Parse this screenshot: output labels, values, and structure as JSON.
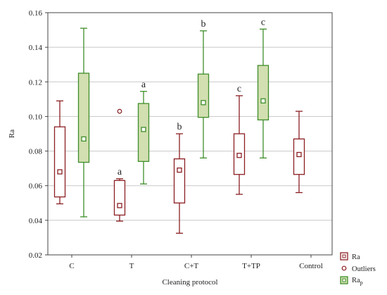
{
  "chart_data": {
    "type": "box",
    "xlabel": "Cleaning protocol",
    "ylabel": "Ra",
    "ylim": [
      0.02,
      0.16
    ],
    "yticks": [
      "0.02",
      "0.04",
      "0.06",
      "0.08",
      "0.10",
      "0.12",
      "0.14",
      "0.16"
    ],
    "ytick_values": [
      0.02,
      0.04,
      0.06,
      0.08,
      0.1,
      0.12,
      0.14,
      0.16
    ],
    "categories": [
      "C",
      "T",
      "C+T",
      "T+TP",
      "Control"
    ],
    "grid": true,
    "legend_position": "bottom-right",
    "colors": {
      "ra": "#8b1e22",
      "rap_stroke": "#3e8e2a",
      "rap_fill": "#d2dfb0",
      "grid": "#c8c8c8",
      "frame": "#444444"
    },
    "legend": {
      "ra": "Ra",
      "outliers": "Outliers",
      "rap_base": "Ra",
      "rap_sub": "p"
    },
    "series": [
      {
        "key": "ra",
        "boxes": [
          {
            "category": "C",
            "whisker_low": 0.0495,
            "q1": 0.0535,
            "median": 0.068,
            "q3": 0.094,
            "whisker_high": 0.109,
            "letter": ""
          },
          {
            "category": "T",
            "whisker_low": 0.0395,
            "q1": 0.043,
            "median": 0.0485,
            "q3": 0.063,
            "whisker_high": 0.064,
            "outliers": [
              0.103
            ],
            "letter": "a"
          },
          {
            "category": "C+T",
            "whisker_low": 0.0325,
            "q1": 0.05,
            "median": 0.069,
            "q3": 0.0755,
            "whisker_high": 0.09,
            "letter": "b"
          },
          {
            "category": "T+TP",
            "whisker_low": 0.055,
            "q1": 0.0665,
            "median": 0.0775,
            "q3": 0.09,
            "whisker_high": 0.112,
            "letter": "c"
          },
          {
            "category": "Control",
            "whisker_low": 0.056,
            "q1": 0.0665,
            "median": 0.078,
            "q3": 0.087,
            "whisker_high": 0.103,
            "letter": ""
          }
        ]
      },
      {
        "key": "rap",
        "boxes": [
          {
            "category": "C",
            "whisker_low": 0.042,
            "q1": 0.0735,
            "median": 0.087,
            "q3": 0.125,
            "whisker_high": 0.151,
            "letter": ""
          },
          {
            "category": "T",
            "whisker_low": 0.061,
            "q1": 0.074,
            "median": 0.0925,
            "q3": 0.1075,
            "whisker_high": 0.1145,
            "letter": "a"
          },
          {
            "category": "C+T",
            "whisker_low": 0.076,
            "q1": 0.0995,
            "median": 0.108,
            "q3": 0.1245,
            "whisker_high": 0.1495,
            "letter": "b"
          },
          {
            "category": "T+TP",
            "whisker_low": 0.076,
            "q1": 0.098,
            "median": 0.109,
            "q3": 0.1295,
            "whisker_high": 0.1505,
            "letter": "c"
          }
        ]
      }
    ]
  }
}
